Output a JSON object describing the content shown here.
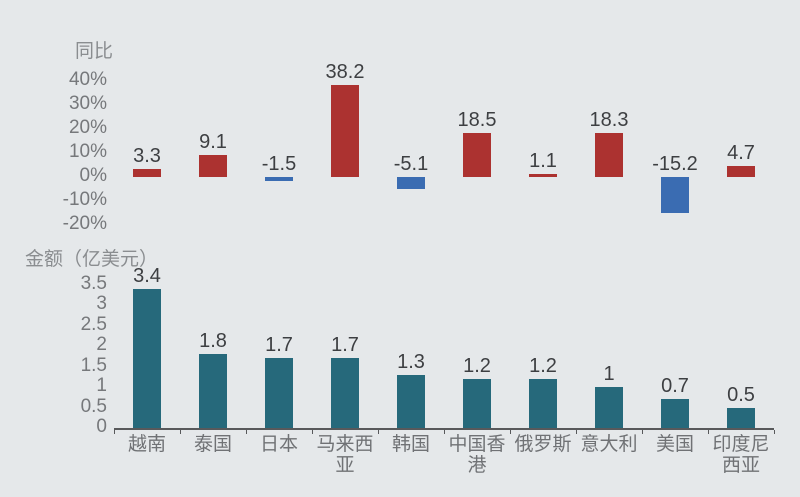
{
  "background_color": "#e5e8ea",
  "chart_data": [
    {
      "type": "bar",
      "title": "同比",
      "unit": "%",
      "categories": [
        "越南",
        "泰国",
        "日本",
        "马来西亚",
        "韩国",
        "中国香港",
        "俄罗斯",
        "意大利",
        "美国",
        "印度尼西亚"
      ],
      "values": [
        3.3,
        9.1,
        -1.5,
        38.2,
        -5.1,
        18.5,
        1.1,
        18.3,
        -15.2,
        4.7
      ],
      "value_labels": [
        "3.3",
        "9.1",
        "-1.5",
        "38.2",
        "-5.1",
        "18.5",
        "1.1",
        "18.3",
        "-15.2",
        "4.7"
      ],
      "yticks": [
        {
          "value": 40,
          "label": "40%"
        },
        {
          "value": 30,
          "label": "30%"
        },
        {
          "value": 20,
          "label": "20%"
        },
        {
          "value": 10,
          "label": "10%"
        },
        {
          "value": 0,
          "label": "0%"
        },
        {
          "value": -10,
          "label": "-10%"
        },
        {
          "value": -20,
          "label": "-20%"
        }
      ],
      "ylim": [
        -20,
        40
      ],
      "grid": false,
      "legend": false,
      "colors": {
        "positive": "#ac3230",
        "negative": "#3a6cb2"
      },
      "show_axis_line": false,
      "show_category_labels": false
    },
    {
      "type": "bar",
      "title": "金额（亿美元）",
      "unit": "亿美元",
      "categories": [
        "越南",
        "泰国",
        "日本",
        "马来西亚",
        "韩国",
        "中国香港",
        "俄罗斯",
        "意大利",
        "美国",
        "印度尼西亚"
      ],
      "category_labels": [
        "越南",
        "泰国",
        "日本",
        "马来西\n亚",
        "韩国",
        "中国香\n港",
        "俄罗斯",
        "意大利",
        "美国",
        "印度尼\n西亚"
      ],
      "values": [
        3.4,
        1.8,
        1.7,
        1.7,
        1.3,
        1.2,
        1.2,
        1,
        0.7,
        0.5
      ],
      "value_labels": [
        "3.4",
        "1.8",
        "1.7",
        "1.7",
        "1.3",
        "1.2",
        "1.2",
        "1",
        "0.7",
        "0.5"
      ],
      "yticks": [
        {
          "value": 3.5,
          "label": "3.5"
        },
        {
          "value": 3,
          "label": "3"
        },
        {
          "value": 2.5,
          "label": "2.5"
        },
        {
          "value": 2,
          "label": "2"
        },
        {
          "value": 1.5,
          "label": "1.5"
        },
        {
          "value": 1,
          "label": "1"
        },
        {
          "value": 0.5,
          "label": "0.5"
        },
        {
          "value": 0,
          "label": "0"
        }
      ],
      "ylim": [
        0,
        3.5
      ],
      "grid": false,
      "legend": false,
      "colors": {
        "positive": "#26697b",
        "negative": "#26697b"
      },
      "show_axis_line": true,
      "show_category_labels": true
    }
  ]
}
